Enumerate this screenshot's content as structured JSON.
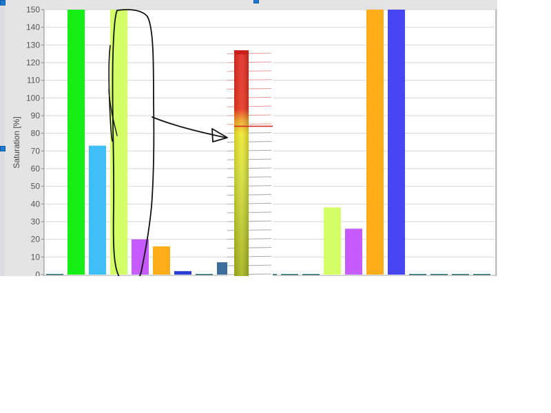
{
  "chart_data": {
    "type": "bar",
    "ylabel": "Saturation [%]",
    "ylim": [
      0,
      150
    ],
    "ytick_step": 10,
    "yticks": [
      "0",
      "10",
      "20",
      "30",
      "40",
      "50",
      "60",
      "70",
      "80",
      "90",
      "100",
      "110",
      "120",
      "130",
      "140",
      "150"
    ],
    "grid": true,
    "legend": "none",
    "bars": [
      {
        "value": 0,
        "color": "#1b5f5f"
      },
      {
        "value": 150,
        "color": "#15ee15"
      },
      {
        "value": 73,
        "color": "#3fbef7"
      },
      {
        "value": 150,
        "color": "#d4ff66"
      },
      {
        "value": 20,
        "color": "#c65cff"
      },
      {
        "value": 16,
        "color": "#ffae1a"
      },
      {
        "value": 2,
        "color": "#2e3fd6"
      },
      {
        "value": 0,
        "color": "#1b5f5f"
      },
      {
        "value": 7,
        "color": "#3d6d9a"
      },
      {
        "value": 0,
        "color": "#1b5f5f"
      },
      {
        "value": 0,
        "color": "#1b5f5f"
      },
      {
        "value": 0,
        "color": "#1b5f5f"
      },
      {
        "value": 0,
        "color": "#1b5f5f"
      },
      {
        "value": 38,
        "color": "#d4ff66"
      },
      {
        "value": 26,
        "color": "#c65cff"
      },
      {
        "value": 150,
        "color": "#ffae1a"
      },
      {
        "value": 150,
        "color": "#4646f5"
      },
      {
        "value": 0,
        "color": "#1b5f5f"
      },
      {
        "value": 0,
        "color": "#1b5f5f"
      },
      {
        "value": 0,
        "color": "#1b5f5f"
      },
      {
        "value": 0,
        "color": "#1b5f5f"
      }
    ],
    "gauge": {
      "value": 127,
      "threshold": 84,
      "colors": [
        "#a8b81c",
        "#eaea2a",
        "#e5261e"
      ]
    }
  },
  "colors": {
    "frame": "#e4e4e4",
    "plot_bg": "#ffffff",
    "grid": "#d6d6d6",
    "annotation_ink": "#111111"
  }
}
